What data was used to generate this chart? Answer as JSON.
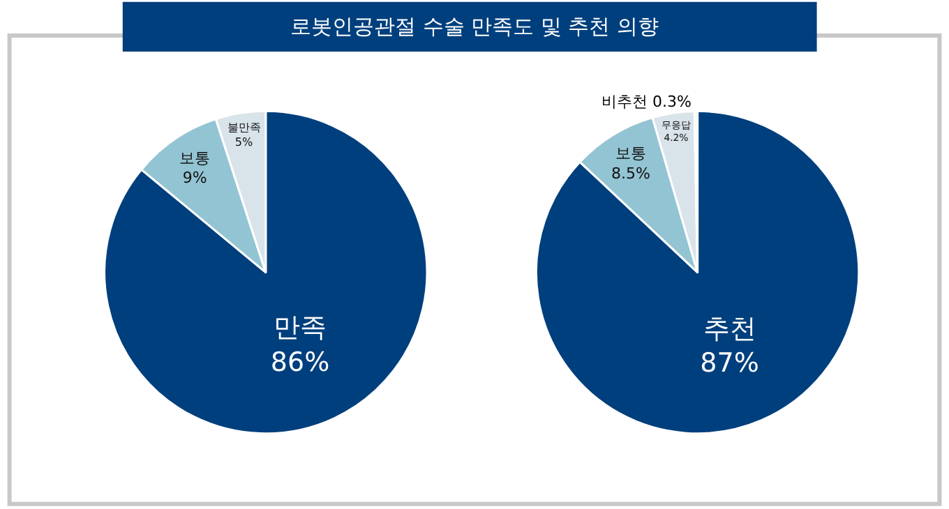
{
  "chart_data": [
    {
      "type": "pie",
      "title": "로봇인공관절 수술 만족도 및 추천 의향",
      "categories": [
        "만족",
        "보통",
        "불만족"
      ],
      "values": [
        86,
        9,
        5
      ],
      "value_labels": [
        "86%",
        "9%",
        "5%"
      ],
      "colors": [
        "#003f7d",
        "#93c4d3",
        "#d9e3ea"
      ]
    },
    {
      "type": "pie",
      "categories": [
        "추천",
        "보통",
        "무응답",
        "비추천"
      ],
      "values": [
        87,
        8.5,
        4.2,
        0.3
      ],
      "value_labels": [
        "87%",
        "8.5%",
        "4.2%",
        "0.3%"
      ],
      "colors": [
        "#003f7d",
        "#93c4d3",
        "#d9e3ea",
        "#f2f2f2"
      ]
    }
  ]
}
